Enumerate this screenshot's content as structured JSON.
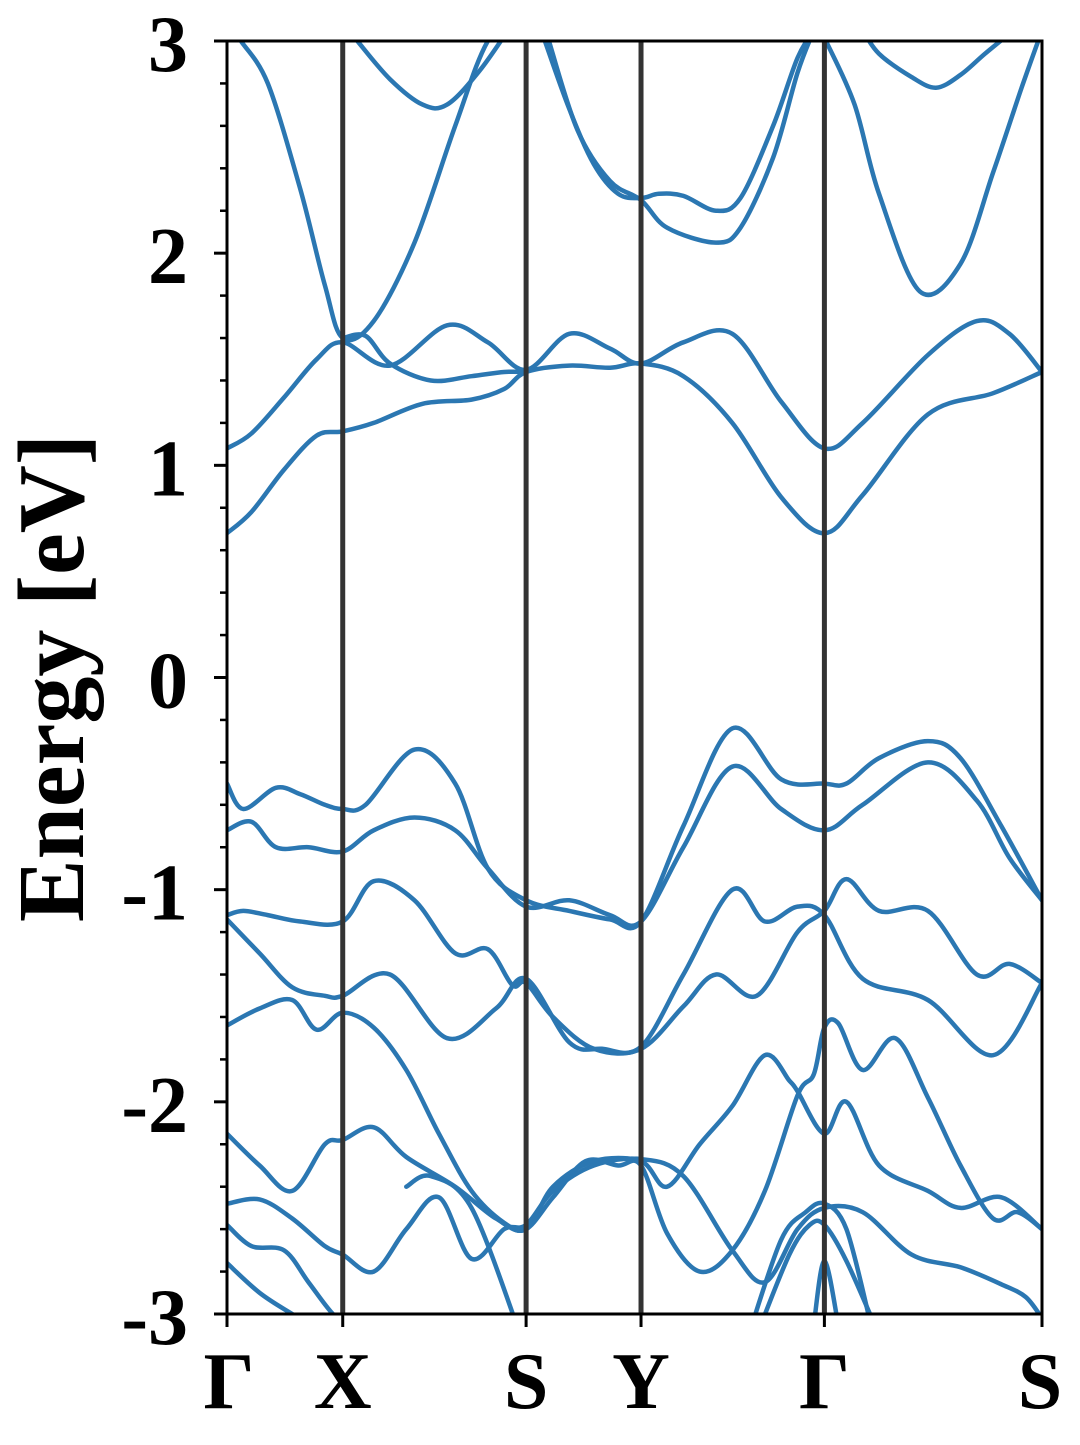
{
  "chart_data": {
    "type": "line",
    "title": "",
    "ylabel": "Energy [eV]",
    "xlabel": "",
    "ylim": [
      -3,
      3
    ],
    "yticks": [
      {
        "value": 3,
        "label": "3"
      },
      {
        "value": 2,
        "label": "2"
      },
      {
        "value": 1,
        "label": "1"
      },
      {
        "value": 0,
        "label": "0"
      },
      {
        "value": -1,
        "label": "-1"
      },
      {
        "value": -2,
        "label": "-2"
      },
      {
        "value": -3,
        "label": "-3"
      }
    ],
    "yminor_step": 0.2,
    "xlim": [
      0,
      1
    ],
    "kpoints": [
      {
        "label": "Γ",
        "x": 0.0
      },
      {
        "label": "X",
        "x": 0.142
      },
      {
        "label": "S",
        "x": 0.367
      },
      {
        "label": "Y",
        "x": 0.508
      },
      {
        "label": "Γ",
        "x": 0.733
      },
      {
        "label": "S",
        "x": 1.0
      }
    ],
    "grid": false,
    "line_color": "#2b77b2",
    "kline_color": "#333333",
    "series": [
      {
        "x": [
          0,
          0.03,
          0.07,
          0.11,
          0.142,
          0.18,
          0.24,
          0.3,
          0.34,
          0.367,
          0.42,
          0.47,
          0.508,
          0.56,
          0.62,
          0.68,
          0.733,
          0.78,
          0.86,
          0.94,
          1.0
        ],
        "y": [
          0.68,
          0.78,
          0.98,
          1.14,
          1.16,
          1.2,
          1.29,
          1.31,
          1.36,
          1.44,
          1.47,
          1.46,
          1.48,
          1.42,
          1.2,
          0.85,
          0.68,
          0.86,
          1.24,
          1.34,
          1.44
        ]
      },
      {
        "x": [
          0,
          0.03,
          0.07,
          0.11,
          0.142,
          0.2,
          0.27,
          0.32,
          0.367,
          0.42,
          0.47,
          0.508,
          0.56,
          0.62,
          0.68,
          0.733,
          0.78,
          0.86,
          0.92,
          0.96,
          1.0
        ],
        "y": [
          1.08,
          1.15,
          1.32,
          1.5,
          1.58,
          1.47,
          1.66,
          1.58,
          1.45,
          1.62,
          1.55,
          1.48,
          1.58,
          1.62,
          1.3,
          1.08,
          1.2,
          1.52,
          1.68,
          1.62,
          1.44
        ]
      },
      {
        "x": [
          0.017,
          0.05,
          0.09,
          0.12,
          0.142,
          0.18,
          0.23,
          0.28,
          0.32,
          0.367
        ],
        "y": [
          3.0,
          2.8,
          2.3,
          1.85,
          1.6,
          1.68,
          2.05,
          2.6,
          3.0,
          3.2
        ]
      },
      {
        "x": [
          0.142,
          0.17,
          0.2,
          0.25,
          0.3,
          0.34,
          0.367
        ],
        "y": [
          1.6,
          1.61,
          1.48,
          1.4,
          1.42,
          1.44,
          1.44
        ]
      },
      {
        "x": [
          0.16,
          0.2,
          0.24,
          0.27,
          0.31,
          0.35
        ],
        "y": [
          3.0,
          2.82,
          2.7,
          2.7,
          2.86,
          3.08
        ]
      },
      {
        "x": [
          0.39,
          0.42,
          0.45,
          0.48,
          0.508,
          0.53,
          0.56,
          0.6,
          0.63,
          0.67,
          0.7,
          0.72
        ],
        "y": [
          3.0,
          2.68,
          2.42,
          2.28,
          2.26,
          2.28,
          2.27,
          2.2,
          2.26,
          2.6,
          2.92,
          3.05
        ]
      },
      {
        "x": [
          0.395,
          0.43,
          0.47,
          0.508,
          0.54,
          0.6,
          0.63,
          0.67,
          0.7,
          0.72
        ],
        "y": [
          3.0,
          2.58,
          2.34,
          2.25,
          2.12,
          2.05,
          2.12,
          2.45,
          2.85,
          3.05
        ]
      },
      {
        "x": [
          0.735,
          0.77,
          0.8,
          0.85,
          0.9,
          0.94,
          0.975,
          1.0
        ],
        "y": [
          3.0,
          2.7,
          2.28,
          1.82,
          1.95,
          2.38,
          2.78,
          3.05
        ]
      },
      {
        "x": [
          0.78,
          0.8,
          0.84,
          0.87,
          0.9,
          0.93,
          0.965
        ],
        "y": [
          3.05,
          2.94,
          2.83,
          2.78,
          2.84,
          2.94,
          3.05
        ]
      },
      {
        "x": [
          0,
          0.02,
          0.06,
          0.09,
          0.12,
          0.142,
          0.17,
          0.23,
          0.28,
          0.32,
          0.367,
          0.42,
          0.47,
          0.508,
          0.56,
          0.62,
          0.68,
          0.733,
          0.76,
          0.8,
          0.86,
          0.9,
          0.95,
          1.0
        ],
        "y": [
          -0.5,
          -0.62,
          -0.52,
          -0.55,
          -0.6,
          -0.62,
          -0.6,
          -0.34,
          -0.5,
          -0.9,
          -1.05,
          -1.1,
          -1.14,
          -1.15,
          -0.7,
          -0.24,
          -0.48,
          -0.5,
          -0.5,
          -0.38,
          -0.3,
          -0.38,
          -0.7,
          -1.05
        ]
      },
      {
        "x": [
          0,
          0.03,
          0.06,
          0.1,
          0.142,
          0.18,
          0.23,
          0.28,
          0.32,
          0.367,
          0.42,
          0.47,
          0.508,
          0.56,
          0.62,
          0.68,
          0.733,
          0.78,
          0.86,
          0.92,
          0.96,
          1.0
        ],
        "y": [
          -0.72,
          -0.68,
          -0.8,
          -0.8,
          -0.82,
          -0.72,
          -0.66,
          -0.72,
          -0.9,
          -1.08,
          -1.05,
          -1.12,
          -1.15,
          -0.8,
          -0.42,
          -0.62,
          -0.72,
          -0.6,
          -0.4,
          -0.58,
          -0.85,
          -1.05
        ]
      },
      {
        "x": [
          0,
          0.02,
          0.05,
          0.09,
          0.142,
          0.18,
          0.23,
          0.28,
          0.32,
          0.35,
          0.367,
          0.4,
          0.45,
          0.508,
          0.56,
          0.6,
          0.65,
          0.7,
          0.733,
          0.76,
          0.8,
          0.86,
          0.92,
          0.96,
          1.0
        ],
        "y": [
          -1.12,
          -1.1,
          -1.12,
          -1.15,
          -1.15,
          -0.96,
          -1.05,
          -1.3,
          -1.28,
          -1.45,
          -1.44,
          -1.6,
          -1.75,
          -1.75,
          -1.55,
          -1.4,
          -1.5,
          -1.2,
          -1.1,
          -0.95,
          -1.1,
          -1.1,
          -1.4,
          -1.35,
          -1.44
        ]
      },
      {
        "x": [
          0,
          0.04,
          0.08,
          0.12,
          0.142,
          0.2,
          0.27,
          0.33,
          0.367,
          0.42,
          0.46,
          0.508,
          0.56,
          0.62,
          0.66,
          0.7,
          0.733,
          0.78,
          0.86,
          0.94,
          1.0
        ],
        "y": [
          -1.14,
          -1.3,
          -1.46,
          -1.5,
          -1.5,
          -1.4,
          -1.7,
          -1.56,
          -1.42,
          -1.72,
          -1.75,
          -1.74,
          -1.4,
          -1.0,
          -1.15,
          -1.08,
          -1.12,
          -1.42,
          -1.52,
          -1.78,
          -1.44
        ]
      },
      {
        "x": [
          0,
          0.04,
          0.08,
          0.11,
          0.142,
          0.18,
          0.22,
          0.26,
          0.3,
          0.34,
          0.367,
          0.4,
          0.44,
          0.48,
          0.508,
          0.54,
          0.58,
          0.62,
          0.66,
          0.7,
          0.72,
          0.733,
          0.75,
          0.78,
          0.82,
          0.86,
          0.9,
          0.94,
          0.97,
          1.0
        ],
        "y": [
          -1.64,
          -1.56,
          -1.52,
          -1.66,
          -1.58,
          -1.65,
          -1.85,
          -2.15,
          -2.42,
          -2.57,
          -2.6,
          -2.45,
          -2.28,
          -2.3,
          -2.3,
          -2.62,
          -2.8,
          -2.7,
          -2.42,
          -1.97,
          -1.87,
          -1.65,
          -1.63,
          -1.85,
          -1.7,
          -1.98,
          -2.3,
          -2.55,
          -2.52,
          -2.6
        ]
      },
      {
        "x": [
          0,
          0.04,
          0.08,
          0.12,
          0.142,
          0.18,
          0.22,
          0.28,
          0.33,
          0.367,
          0.4,
          0.45,
          0.508,
          0.54,
          0.58,
          0.62,
          0.66,
          0.69,
          0.7,
          0.733,
          0.76,
          0.8,
          0.86,
          0.9,
          0.95,
          1.0
        ],
        "y": [
          -2.15,
          -2.3,
          -2.42,
          -2.2,
          -2.18,
          -2.12,
          -2.26,
          -2.4,
          -2.55,
          -2.6,
          -2.4,
          -2.28,
          -2.28,
          -2.4,
          -2.2,
          -2.02,
          -1.78,
          -1.9,
          -1.95,
          -2.15,
          -2.0,
          -2.3,
          -2.42,
          -2.5,
          -2.45,
          -2.6
        ]
      },
      {
        "x": [
          0,
          0.04,
          0.08,
          0.12,
          0.142,
          0.18,
          0.22,
          0.26,
          0.3,
          0.34,
          0.367,
          0.4,
          0.45,
          0.508,
          0.56,
          0.62,
          0.66,
          0.7,
          0.733,
          0.78,
          0.84,
          0.9,
          0.95,
          0.98,
          1.0
        ],
        "y": [
          -2.48,
          -2.46,
          -2.55,
          -2.68,
          -2.72,
          -2.8,
          -2.6,
          -2.45,
          -2.74,
          -2.6,
          -2.58,
          -2.42,
          -2.3,
          -2.27,
          -2.35,
          -2.7,
          -2.85,
          -2.6,
          -2.5,
          -2.52,
          -2.72,
          -2.78,
          -2.86,
          -2.92,
          -3.02
        ]
      },
      {
        "x": [
          0,
          0.03,
          0.07,
          0.1,
          0.13,
          0.16
        ],
        "y": [
          -2.58,
          -2.68,
          -2.7,
          -2.85,
          -3.0,
          -3.1
        ]
      },
      {
        "x": [
          0,
          0.04,
          0.08,
          0.125
        ],
        "y": [
          -2.76,
          -2.9,
          -3.0,
          -3.1
        ]
      },
      {
        "x": [
          0.22,
          0.25,
          0.3,
          0.36
        ],
        "y": [
          -2.4,
          -2.35,
          -2.5,
          -3.1
        ]
      },
      {
        "x": [
          0.64,
          0.68,
          0.71,
          0.733,
          0.76,
          0.79
        ],
        "y": [
          -3.1,
          -2.65,
          -2.52,
          -2.48,
          -2.6,
          -3.05
        ]
      },
      {
        "x": [
          0.65,
          0.69,
          0.715,
          0.733,
          0.76,
          0.8
        ],
        "y": [
          -3.1,
          -2.72,
          -2.58,
          -2.58,
          -2.75,
          -3.1
        ]
      },
      {
        "x": [
          0.72,
          0.733,
          0.75
        ],
        "y": [
          -3.05,
          -2.75,
          -3.05
        ]
      }
    ]
  }
}
